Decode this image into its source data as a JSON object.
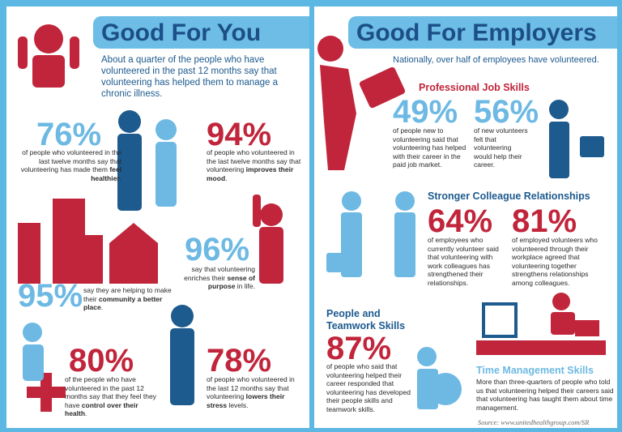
{
  "left": {
    "title": "Good For You",
    "intro": "About a quarter of the people who have volunteered in the past 12 months say that volunteering has helped them to manage a chronic illness.",
    "stats": [
      {
        "value": "76%",
        "desc": [
          "of people who volunteered in the last twelve months say that volunteering has made them ",
          "feel healthier",
          "."
        ]
      },
      {
        "value": "94%",
        "desc": [
          "of people who volunteered in the last twelve months say that volunteering ",
          "improves their mood",
          "."
        ]
      },
      {
        "value": "96%",
        "desc": [
          "say that volunteering enriches their ",
          "sense of purpose",
          " in life."
        ]
      },
      {
        "value": "95%",
        "desc": [
          "say they are helping to make their ",
          "community a better place",
          "."
        ]
      },
      {
        "value": "80%",
        "desc": [
          "of the people who have volunteered in the past 12 months say that they feel they have ",
          "control over their health",
          "."
        ]
      },
      {
        "value": "78%",
        "desc": [
          "of people who volunteered in the last 12 months say that volunteering ",
          "lowers their stress",
          " levels."
        ]
      }
    ]
  },
  "right": {
    "title": "Good For Employers",
    "subtitle": "Nationally, over half of employees have volunteered.",
    "sections": [
      {
        "heading": "Professional Job Skills",
        "stats": [
          {
            "value": "49%",
            "desc": "of people new to volunteering said that volunteering has helped with their career in the paid job market."
          },
          {
            "value": "56%",
            "desc": "of new volunteers felt that volunteering would help their career."
          }
        ]
      },
      {
        "heading": "Stronger Colleague Relationships",
        "stats": [
          {
            "value": "64%",
            "desc": "of employees who currently volunteer said that volunteering with work colleagues has strengthened their relationships."
          },
          {
            "value": "81%",
            "desc": "of employed volunteers who volunteered through their workplace agreed that volunteering together strengthens relationships among colleagues."
          }
        ]
      },
      {
        "heading": "People and Teamwork Skills",
        "stats": [
          {
            "value": "87%",
            "desc": "of people who said that volunteering helped their career responded that volunteering has developed their people skills and teamwork skills."
          }
        ]
      },
      {
        "heading": "Time Management Skills",
        "stats": [
          {
            "desc": "More than three-quarters of people who told us that volunteering helped their careers said that volunteering has taught them about time management."
          }
        ]
      }
    ],
    "source": "Source: www.unitedhealthgroup.com/SR"
  }
}
